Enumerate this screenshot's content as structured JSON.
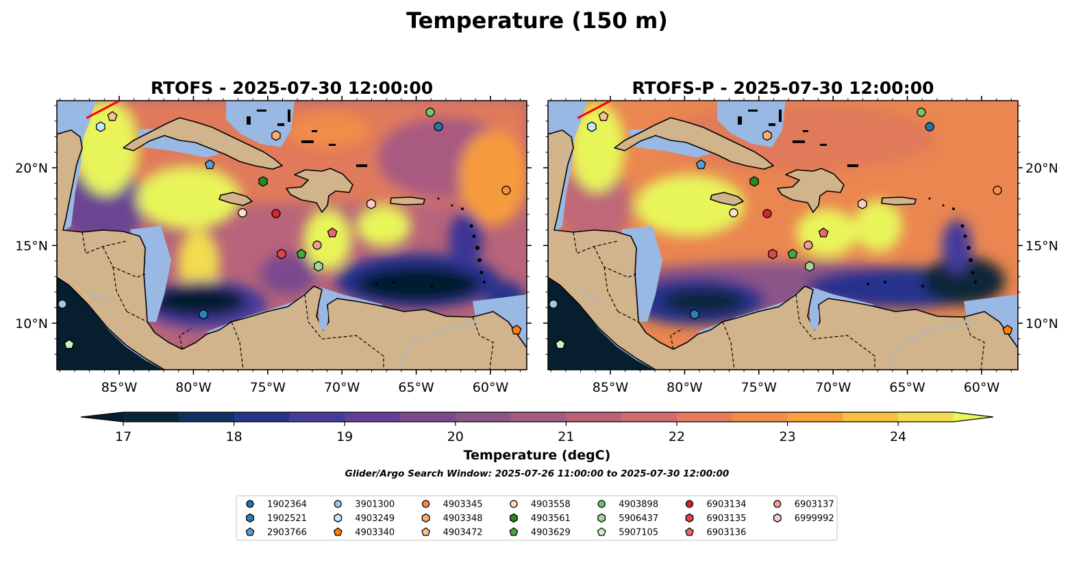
{
  "figure": {
    "title": "Temperature (150 m)",
    "panels": [
      {
        "title": "RTOFS - 2025-07-30 12:00:00"
      },
      {
        "title": "RTOFS-P - 2025-07-30 12:00:00"
      }
    ],
    "colorbar_label": "Temperature (degC)",
    "search_window": "Glider/Argo Search Window: 2025-07-26 11:00:00 to 2025-07-30 12:00:00"
  },
  "chart_data": {
    "type": "map",
    "variable": "Temperature at 150 m",
    "extent": {
      "lon": [
        -89.2,
        -57.5
      ],
      "lat": [
        7.0,
        24.3
      ]
    },
    "lon_ticks": [
      -85,
      -80,
      -75,
      -70,
      -65,
      -60
    ],
    "lon_tick_labels": [
      "85°W",
      "80°W",
      "75°W",
      "70°W",
      "65°W",
      "60°W"
    ],
    "lat_ticks": [
      10,
      15,
      20
    ],
    "lat_tick_labels": [
      "10°N",
      "15°N",
      "20°N"
    ],
    "colorbar": {
      "levels_min": 17,
      "levels_max": 24.5,
      "step": 0.5,
      "ticks": [
        17,
        18,
        19,
        20,
        21,
        22,
        23,
        24
      ],
      "tick_labels": [
        "17",
        "18",
        "19",
        "20",
        "21",
        "22",
        "23",
        "24"
      ],
      "extend": "both",
      "under_color": "#061e2d",
      "over_color": "#e8f75a",
      "colors": [
        "#082538",
        "#10305f",
        "#27338d",
        "#453a9c",
        "#613f95",
        "#7a4a8e",
        "#8c5588",
        "#a35c80",
        "#ba6278",
        "#d16c6e",
        "#e67a5b",
        "#f28c48",
        "#f9a13a",
        "#f9c040",
        "#f3dc4f"
      ]
    },
    "transect_line": {
      "color": "#ff0000",
      "lon": [
        -87.2,
        -85.0
      ],
      "lat": [
        23.2,
        24.3
      ]
    },
    "platforms": [
      {
        "id": "1902364",
        "marker": "circle",
        "color": "#1f77b4",
        "lon": -63.5,
        "lat": 22.64
      },
      {
        "id": "1902521",
        "marker": "hexagon",
        "color": "#2b80bd",
        "lon": -79.33,
        "lat": 10.57
      },
      {
        "id": "2903766",
        "marker": "pentagon",
        "color": "#5a9fd4",
        "lon": -78.9,
        "lat": 20.2
      },
      {
        "id": "3901300",
        "marker": "circle",
        "color": "#9ecae1",
        "lon": -88.83,
        "lat": 11.23
      },
      {
        "id": "4903249",
        "marker": "hexagon",
        "color": "#c6e6fb",
        "lon": -86.25,
        "lat": 22.64
      },
      {
        "id": "4903340",
        "marker": "pentagon",
        "color": "#ff7f0e",
        "lon": -58.25,
        "lat": 9.56
      },
      {
        "id": "4903345",
        "marker": "circle",
        "color": "#fd8d3c",
        "lon": -58.94,
        "lat": 18.55
      },
      {
        "id": "4903348",
        "marker": "hexagon",
        "color": "#fdae6b",
        "lon": -74.44,
        "lat": 22.07
      },
      {
        "id": "4903472",
        "marker": "pentagon",
        "color": "#fdc28c",
        "lon": -85.46,
        "lat": 23.3
      },
      {
        "id": "4903558",
        "marker": "circle",
        "color": "#fde0c5",
        "lon": -76.7,
        "lat": 17.1
      },
      {
        "id": "4903561",
        "marker": "hexagon",
        "color": "#238b22",
        "lon": -75.31,
        "lat": 19.12
      },
      {
        "id": "4903629",
        "marker": "pentagon",
        "color": "#41ab3c",
        "lon": -72.73,
        "lat": 14.45
      },
      {
        "id": "4903898",
        "marker": "circle",
        "color": "#6dc76d",
        "lon": -64.06,
        "lat": 23.57
      },
      {
        "id": "5906437",
        "marker": "hexagon",
        "color": "#a1d99b",
        "lon": -71.58,
        "lat": 13.66
      },
      {
        "id": "5907105",
        "marker": "pentagon",
        "color": "#c7f5c0",
        "lon": -88.37,
        "lat": 8.63
      },
      {
        "id": "6903134",
        "marker": "circle",
        "color": "#d62728",
        "lon": -74.44,
        "lat": 17.05
      },
      {
        "id": "6903135",
        "marker": "hexagon",
        "color": "#e0454a",
        "lon": -74.07,
        "lat": 14.45
      },
      {
        "id": "6903136",
        "marker": "pentagon",
        "color": "#e9686b",
        "lon": -70.65,
        "lat": 15.81
      },
      {
        "id": "6903137",
        "marker": "circle",
        "color": "#f29d9a",
        "lon": -71.67,
        "lat": 15.02
      },
      {
        "id": "6999992",
        "marker": "hexagon",
        "color": "#fcc9c8",
        "lon": -68.03,
        "lat": 17.67
      }
    ]
  }
}
